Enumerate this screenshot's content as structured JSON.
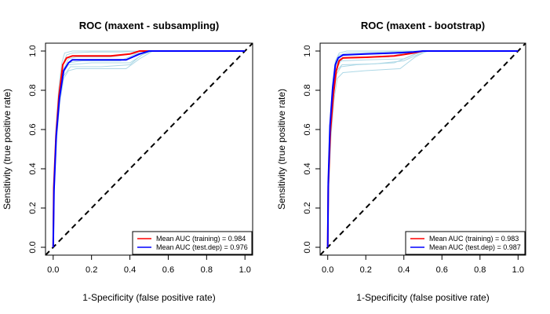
{
  "chart_data": [
    {
      "type": "line",
      "title": "ROC (maxent - subsampling)",
      "xlabel": "1-Specificity (false positive rate)",
      "ylabel": "Sensitivity (true positive rate)",
      "xlim": [
        -0.04,
        1.04
      ],
      "ylim": [
        -0.04,
        1.04
      ],
      "xticks": [
        "0.0",
        "0.2",
        "0.4",
        "0.6",
        "0.8",
        "1.0"
      ],
      "yticks": [
        "0.0",
        "0.2",
        "0.4",
        "0.6",
        "0.8",
        "1.0"
      ],
      "grid": false,
      "legend_position": "bottom-right",
      "replicate_color": "#add8e6",
      "replicates": [
        [
          [
            0,
            0
          ],
          [
            0.003,
            0.3
          ],
          [
            0.015,
            0.58
          ],
          [
            0.03,
            0.78
          ],
          [
            0.05,
            0.93
          ],
          [
            0.07,
            0.98
          ],
          [
            0.1,
            0.99
          ],
          [
            0.2,
            0.995
          ],
          [
            0.35,
            0.995
          ],
          [
            0.5,
            1
          ],
          [
            1,
            1
          ]
        ],
        [
          [
            0,
            0
          ],
          [
            0.004,
            0.28
          ],
          [
            0.016,
            0.56
          ],
          [
            0.032,
            0.77
          ],
          [
            0.05,
            0.9
          ],
          [
            0.08,
            0.96
          ],
          [
            0.12,
            0.97
          ],
          [
            0.3,
            0.97
          ],
          [
            0.45,
            0.99
          ],
          [
            0.5,
            1
          ],
          [
            1,
            1
          ]
        ],
        [
          [
            0,
            0
          ],
          [
            0.005,
            0.27
          ],
          [
            0.018,
            0.55
          ],
          [
            0.035,
            0.74
          ],
          [
            0.055,
            0.86
          ],
          [
            0.08,
            0.9
          ],
          [
            0.12,
            0.91
          ],
          [
            0.38,
            0.91
          ],
          [
            0.45,
            0.96
          ],
          [
            0.52,
            1
          ],
          [
            1,
            1
          ]
        ],
        [
          [
            0,
            0
          ],
          [
            0.004,
            0.3
          ],
          [
            0.016,
            0.57
          ],
          [
            0.03,
            0.76
          ],
          [
            0.05,
            0.88
          ],
          [
            0.08,
            0.94
          ],
          [
            0.15,
            0.95
          ],
          [
            0.35,
            0.95
          ],
          [
            0.42,
            0.98
          ],
          [
            0.5,
            1
          ],
          [
            1,
            1
          ]
        ],
        [
          [
            0,
            0
          ],
          [
            0.003,
            0.31
          ],
          [
            0.014,
            0.6
          ],
          [
            0.028,
            0.8
          ],
          [
            0.045,
            0.94
          ],
          [
            0.06,
            0.99
          ],
          [
            0.1,
            1
          ],
          [
            1,
            1
          ]
        ],
        [
          [
            0,
            0
          ],
          [
            0.004,
            0.29
          ],
          [
            0.017,
            0.57
          ],
          [
            0.033,
            0.76
          ],
          [
            0.052,
            0.89
          ],
          [
            0.08,
            0.93
          ],
          [
            0.2,
            0.94
          ],
          [
            0.4,
            0.94
          ],
          [
            0.48,
            0.99
          ],
          [
            0.51,
            1
          ],
          [
            1,
            1
          ]
        ],
        [
          [
            0,
            0
          ],
          [
            0.005,
            0.28
          ],
          [
            0.017,
            0.56
          ],
          [
            0.033,
            0.75
          ],
          [
            0.052,
            0.87
          ],
          [
            0.09,
            0.92
          ],
          [
            0.25,
            0.92
          ],
          [
            0.4,
            0.93
          ],
          [
            0.46,
            0.98
          ],
          [
            0.52,
            1
          ],
          [
            1,
            1
          ]
        ]
      ],
      "series": [
        {
          "name": "Mean AUC (training) = 0.984",
          "color": "#ff0000",
          "points": [
            [
              0,
              0
            ],
            [
              0.003,
              0.3
            ],
            [
              0.015,
              0.57
            ],
            [
              0.03,
              0.77
            ],
            [
              0.05,
              0.93
            ],
            [
              0.07,
              0.965
            ],
            [
              0.1,
              0.975
            ],
            [
              0.3,
              0.975
            ],
            [
              0.4,
              0.985
            ],
            [
              0.45,
              1
            ],
            [
              1,
              1
            ]
          ]
        },
        {
          "name": "Mean AUC (test.dep) = 0.976",
          "color": "#0000ff",
          "points": [
            [
              0,
              0
            ],
            [
              0.004,
              0.29
            ],
            [
              0.016,
              0.57
            ],
            [
              0.033,
              0.76
            ],
            [
              0.055,
              0.9
            ],
            [
              0.08,
              0.94
            ],
            [
              0.1,
              0.955
            ],
            [
              0.38,
              0.955
            ],
            [
              0.45,
              0.985
            ],
            [
              0.5,
              1
            ],
            [
              1,
              1
            ]
          ]
        },
        {
          "name": "",
          "color": "#000000",
          "dashed": true,
          "points": [
            [
              -0.04,
              -0.04
            ],
            [
              1.04,
              1.04
            ]
          ]
        }
      ]
    },
    {
      "type": "line",
      "title": "ROC (maxent - bootstrap)",
      "xlabel": "1-Specificity (false positive rate)",
      "ylabel": "Sensitivity (true positive rate)",
      "xlim": [
        -0.04,
        1.04
      ],
      "ylim": [
        -0.04,
        1.04
      ],
      "xticks": [
        "0.0",
        "0.2",
        "0.4",
        "0.6",
        "0.8",
        "1.0"
      ],
      "yticks": [
        "0.0",
        "0.2",
        "0.4",
        "0.6",
        "0.8",
        "1.0"
      ],
      "grid": false,
      "legend_position": "bottom-right",
      "replicate_color": "#add8e6",
      "replicates": [
        [
          [
            0,
            0
          ],
          [
            0.003,
            0.33
          ],
          [
            0.012,
            0.62
          ],
          [
            0.025,
            0.82
          ],
          [
            0.04,
            0.94
          ],
          [
            0.06,
            0.98
          ],
          [
            0.1,
            0.99
          ],
          [
            0.3,
            0.995
          ],
          [
            0.5,
            1
          ],
          [
            1,
            1
          ]
        ],
        [
          [
            0,
            0
          ],
          [
            0.004,
            0.3
          ],
          [
            0.015,
            0.58
          ],
          [
            0.03,
            0.78
          ],
          [
            0.045,
            0.88
          ],
          [
            0.07,
            0.92
          ],
          [
            0.15,
            0.93
          ],
          [
            0.35,
            0.94
          ],
          [
            0.45,
            0.98
          ],
          [
            0.5,
            1
          ],
          [
            1,
            1
          ]
        ],
        [
          [
            0,
            0
          ],
          [
            0.005,
            0.29
          ],
          [
            0.017,
            0.56
          ],
          [
            0.033,
            0.75
          ],
          [
            0.05,
            0.86
          ],
          [
            0.08,
            0.89
          ],
          [
            0.2,
            0.9
          ],
          [
            0.38,
            0.91
          ],
          [
            0.46,
            0.97
          ],
          [
            0.52,
            1
          ],
          [
            1,
            1
          ]
        ],
        [
          [
            0,
            0
          ],
          [
            0.003,
            0.32
          ],
          [
            0.013,
            0.6
          ],
          [
            0.027,
            0.8
          ],
          [
            0.042,
            0.92
          ],
          [
            0.06,
            0.96
          ],
          [
            0.12,
            0.965
          ],
          [
            0.32,
            0.97
          ],
          [
            0.4,
            0.99
          ],
          [
            0.5,
            1
          ],
          [
            1,
            1
          ]
        ],
        [
          [
            0,
            0
          ],
          [
            0.004,
            0.31
          ],
          [
            0.014,
            0.6
          ],
          [
            0.028,
            0.79
          ],
          [
            0.045,
            0.91
          ],
          [
            0.07,
            0.95
          ],
          [
            0.2,
            0.955
          ],
          [
            0.4,
            0.96
          ],
          [
            0.47,
            0.99
          ],
          [
            0.52,
            1
          ],
          [
            1,
            1
          ]
        ],
        [
          [
            0,
            0
          ],
          [
            0.003,
            0.34
          ],
          [
            0.012,
            0.63
          ],
          [
            0.025,
            0.83
          ],
          [
            0.04,
            0.95
          ],
          [
            0.06,
            0.99
          ],
          [
            0.1,
            1
          ],
          [
            1,
            1
          ]
        ],
        [
          [
            0,
            0
          ],
          [
            0.004,
            0.3
          ],
          [
            0.016,
            0.58
          ],
          [
            0.031,
            0.77
          ],
          [
            0.048,
            0.9
          ],
          [
            0.075,
            0.93
          ],
          [
            0.25,
            0.935
          ],
          [
            0.4,
            0.95
          ],
          [
            0.48,
            0.985
          ],
          [
            0.53,
            1
          ],
          [
            1,
            1
          ]
        ]
      ],
      "series": [
        {
          "name": "Mean AUC (training) = 0.983",
          "color": "#ff0000",
          "points": [
            [
              0,
              0
            ],
            [
              0.003,
              0.31
            ],
            [
              0.014,
              0.59
            ],
            [
              0.03,
              0.78
            ],
            [
              0.045,
              0.9
            ],
            [
              0.06,
              0.95
            ],
            [
              0.08,
              0.965
            ],
            [
              0.2,
              0.968
            ],
            [
              0.35,
              0.975
            ],
            [
              0.45,
              0.99
            ],
            [
              0.5,
              1
            ],
            [
              1,
              1
            ]
          ]
        },
        {
          "name": "Mean AUC (test.dep) = 0.987",
          "color": "#0000ff",
          "points": [
            [
              0,
              0
            ],
            [
              0.003,
              0.33
            ],
            [
              0.012,
              0.62
            ],
            [
              0.026,
              0.81
            ],
            [
              0.04,
              0.93
            ],
            [
              0.055,
              0.965
            ],
            [
              0.08,
              0.98
            ],
            [
              0.2,
              0.985
            ],
            [
              0.35,
              0.99
            ],
            [
              0.45,
              0.995
            ],
            [
              0.5,
              1
            ],
            [
              1,
              1
            ]
          ]
        },
        {
          "name": "",
          "color": "#000000",
          "dashed": true,
          "points": [
            [
              -0.04,
              -0.04
            ],
            [
              1.04,
              1.04
            ]
          ]
        }
      ]
    }
  ]
}
